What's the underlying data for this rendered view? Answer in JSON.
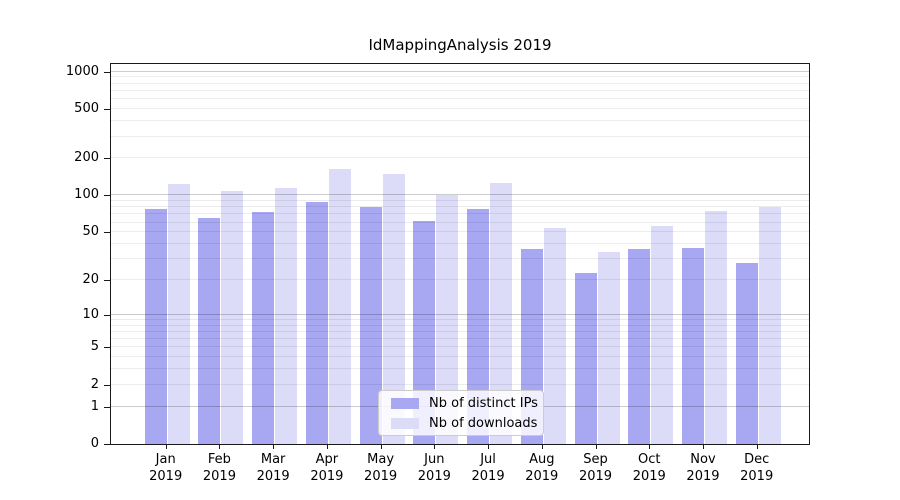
{
  "chart_data": {
    "type": "bar",
    "title": "IdMappingAnalysis 2019",
    "categories": [
      "Jan 2019",
      "Feb 2019",
      "Mar 2019",
      "Apr 2019",
      "May 2019",
      "Jun 2019",
      "Jul 2019",
      "Aug 2019",
      "Sep 2019",
      "Oct 2019",
      "Nov 2019",
      "Dec 2019"
    ],
    "series": [
      {
        "name": "Nb of distinct IPs",
        "color": "#a7a7f2",
        "values": [
          78,
          65,
          73,
          88,
          81,
          62,
          78,
          36,
          23,
          36,
          37,
          28
        ]
      },
      {
        "name": "Nb of downloads",
        "color": "#dcdcf9",
        "values": [
          123,
          108,
          115,
          163,
          148,
          101,
          126,
          54,
          34,
          56,
          75,
          81
        ]
      }
    ],
    "yscale": "log1p",
    "yticks": [
      0,
      1,
      2,
      5,
      10,
      20,
      50,
      100,
      200,
      500,
      1000
    ],
    "grid_major_lines": [
      1,
      10,
      100,
      1000
    ],
    "ylim": [
      0,
      1200
    ],
    "legend_position": "lower-center",
    "grid": "on",
    "xlabel": "",
    "ylabel": ""
  }
}
